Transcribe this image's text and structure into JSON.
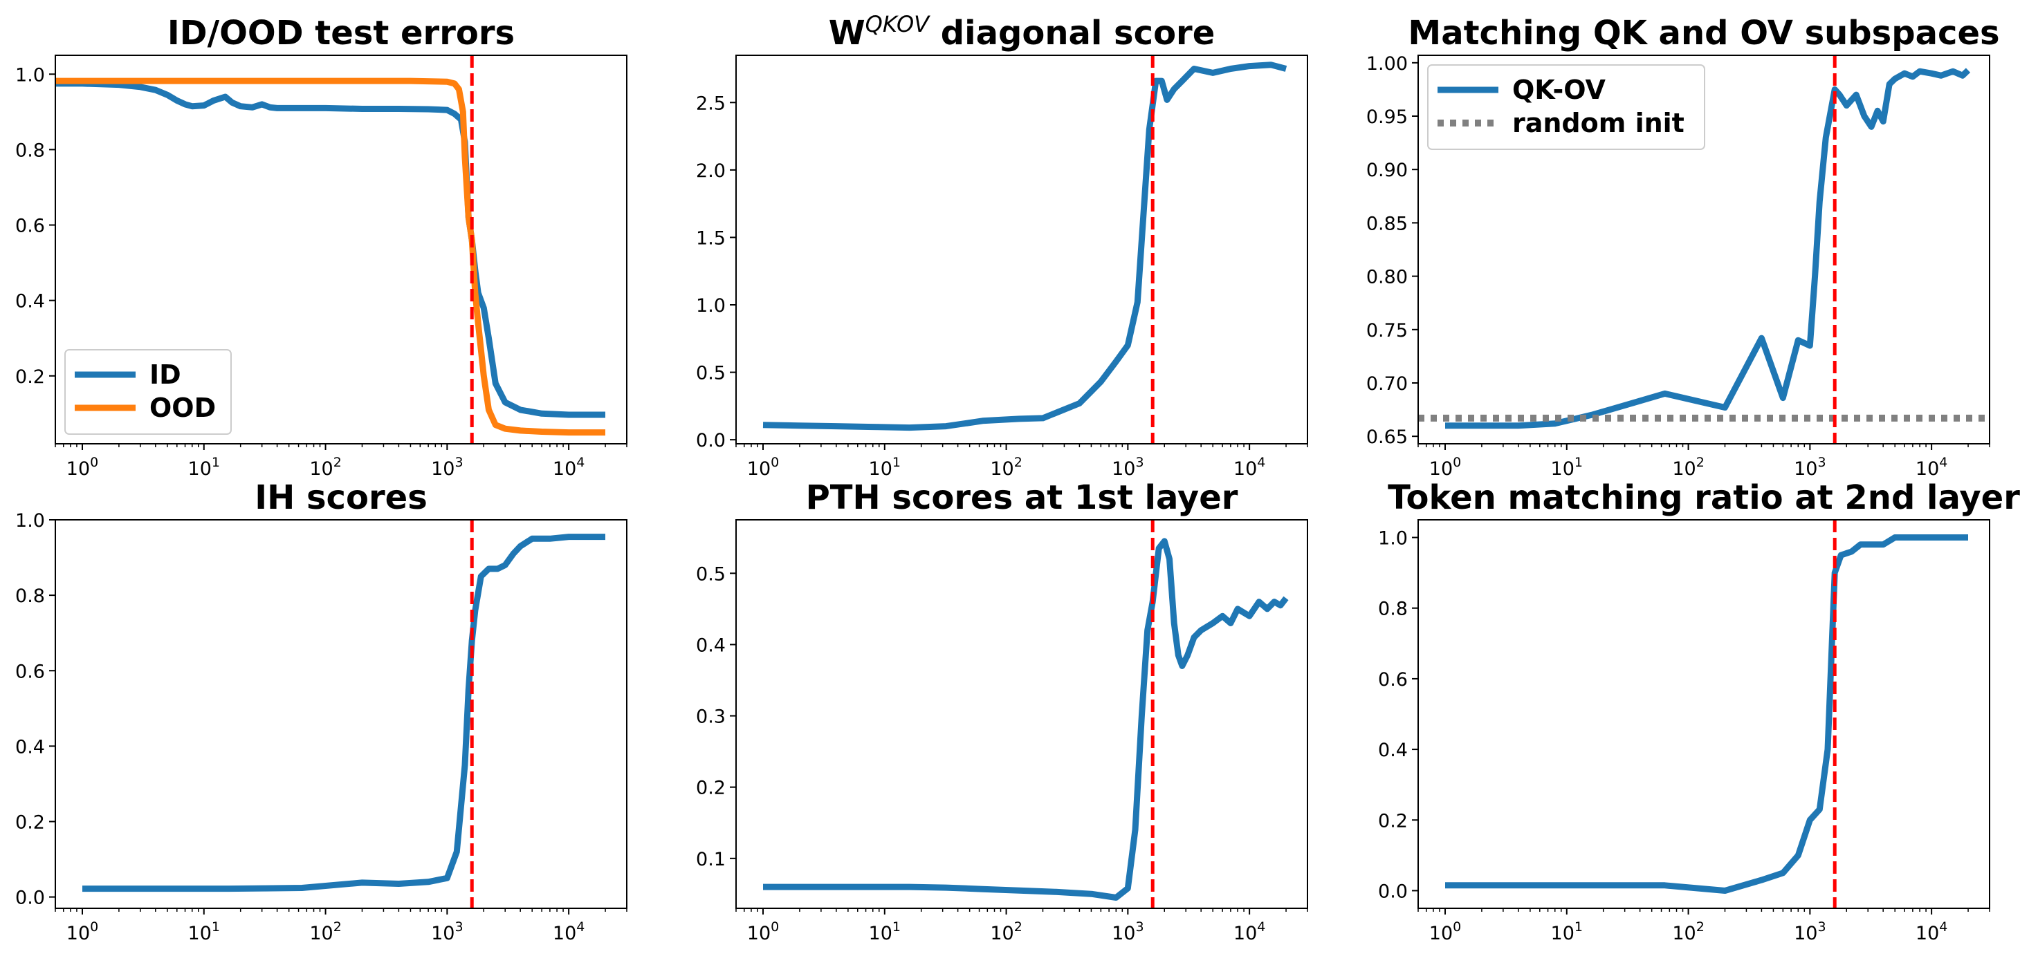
{
  "colors": {
    "blue": "#1f77b4",
    "orange": "#ff7f0e",
    "red": "#ff0000",
    "gray": "#808080"
  },
  "chart_data": [
    {
      "type": "line",
      "title": "ID/OOD test errors",
      "xscale": "log",
      "xlim": [
        0.6,
        30000
      ],
      "ylim": [
        0.02,
        1.05
      ],
      "yticks": [
        0.2,
        0.4,
        0.6,
        0.8,
        1.0
      ],
      "ytick_labels": [
        "0.2",
        "0.4",
        "0.6",
        "0.8",
        "1.0"
      ],
      "xticks": [
        1,
        10,
        100,
        1000,
        10000
      ],
      "xtick_labels": [
        "10^0",
        "10^1",
        "10^2",
        "10^3",
        "10^4"
      ],
      "vline": 1600,
      "legend": "lower-left",
      "series": [
        {
          "name": "ID",
          "color": "#1f77b4",
          "style": "solid",
          "x": [
            0.6,
            1,
            2,
            3,
            4,
            5,
            6,
            7,
            8,
            10,
            12,
            15,
            17,
            20,
            25,
            30,
            35,
            40,
            60,
            100,
            200,
            400,
            700,
            1000,
            1150,
            1300,
            1400,
            1500,
            1600,
            1700,
            1800,
            2000,
            2200,
            2500,
            3000,
            4000,
            6000,
            10000,
            20000
          ],
          "y": [
            0.975,
            0.975,
            0.972,
            0.966,
            0.958,
            0.945,
            0.93,
            0.92,
            0.915,
            0.917,
            0.93,
            0.94,
            0.925,
            0.915,
            0.912,
            0.92,
            0.912,
            0.91,
            0.91,
            0.91,
            0.908,
            0.908,
            0.907,
            0.905,
            0.895,
            0.88,
            0.82,
            0.62,
            0.56,
            0.48,
            0.42,
            0.38,
            0.3,
            0.18,
            0.13,
            0.11,
            0.1,
            0.097,
            0.097
          ]
        },
        {
          "name": "OOD",
          "color": "#ff7f0e",
          "style": "solid",
          "x": [
            0.6,
            1,
            10,
            100,
            500,
            1000,
            1150,
            1250,
            1350,
            1400,
            1500,
            1600,
            1700,
            1800,
            2000,
            2200,
            2500,
            3000,
            4000,
            6000,
            10000,
            20000
          ],
          "y": [
            0.982,
            0.982,
            0.982,
            0.982,
            0.982,
            0.98,
            0.975,
            0.96,
            0.9,
            0.78,
            0.62,
            0.56,
            0.42,
            0.34,
            0.2,
            0.11,
            0.07,
            0.06,
            0.055,
            0.052,
            0.05,
            0.05
          ]
        }
      ]
    },
    {
      "type": "line",
      "title": "W",
      "title_sup": "QKOV",
      "title_rest": " diagonal score",
      "xscale": "log",
      "xlim": [
        0.6,
        30000
      ],
      "ylim": [
        -0.03,
        2.85
      ],
      "yticks": [
        0.0,
        0.5,
        1.0,
        1.5,
        2.0,
        2.5
      ],
      "ytick_labels": [
        "0.0",
        "0.5",
        "1.0",
        "1.5",
        "2.0",
        "2.5"
      ],
      "xticks": [
        1,
        10,
        100,
        1000,
        10000
      ],
      "xtick_labels": [
        "10^0",
        "10^1",
        "10^2",
        "10^3",
        "10^4"
      ],
      "vline": 1600,
      "series": [
        {
          "name": "diagonal",
          "color": "#1f77b4",
          "style": "solid",
          "x": [
            1,
            2,
            4,
            8,
            16,
            32,
            64,
            128,
            200,
            400,
            600,
            800,
            1000,
            1200,
            1500,
            1700,
            1900,
            2100,
            2400,
            2800,
            3500,
            5000,
            7000,
            10000,
            15000,
            20000
          ],
          "y": [
            0.11,
            0.105,
            0.1,
            0.095,
            0.09,
            0.1,
            0.14,
            0.155,
            0.16,
            0.27,
            0.43,
            0.58,
            0.7,
            1.02,
            2.3,
            2.66,
            2.66,
            2.52,
            2.6,
            2.66,
            2.75,
            2.72,
            2.75,
            2.77,
            2.78,
            2.75
          ]
        }
      ]
    },
    {
      "type": "line",
      "title": "Matching QK and OV subspaces",
      "xscale": "log",
      "xlim": [
        0.6,
        30000
      ],
      "ylim": [
        0.643,
        1.007
      ],
      "yticks": [
        0.65,
        0.7,
        0.75,
        0.8,
        0.85,
        0.9,
        0.95,
        1.0
      ],
      "ytick_labels": [
        "0.65",
        "0.70",
        "0.75",
        "0.80",
        "0.85",
        "0.90",
        "0.95",
        "1.00"
      ],
      "xticks": [
        1,
        10,
        100,
        1000,
        10000
      ],
      "xtick_labels": [
        "10^0",
        "10^1",
        "10^2",
        "10^3",
        "10^4"
      ],
      "vline": 1600,
      "legend": "upper-left",
      "series": [
        {
          "name": "QK-OV",
          "color": "#1f77b4",
          "style": "solid",
          "x": [
            1,
            2,
            4,
            8,
            16,
            32,
            64,
            200,
            400,
            600,
            800,
            1000,
            1100,
            1200,
            1350,
            1600,
            1750,
            2000,
            2400,
            2800,
            3200,
            3600,
            4000,
            4500,
            5000,
            6000,
            7000,
            8000,
            10000,
            12000,
            15000,
            18000,
            20000
          ],
          "y": [
            0.66,
            0.66,
            0.66,
            0.662,
            0.67,
            0.68,
            0.69,
            0.677,
            0.742,
            0.686,
            0.74,
            0.735,
            0.8,
            0.87,
            0.93,
            0.975,
            0.97,
            0.96,
            0.97,
            0.95,
            0.94,
            0.955,
            0.945,
            0.98,
            0.985,
            0.99,
            0.987,
            0.992,
            0.99,
            0.988,
            0.992,
            0.988,
            0.993
          ]
        },
        {
          "name": "random init",
          "color": "#808080",
          "style": "dotted",
          "x": [
            0.6,
            30000
          ],
          "y": [
            0.667,
            0.667
          ]
        }
      ]
    },
    {
      "type": "line",
      "title": "IH scores",
      "xscale": "log",
      "xlim": [
        0.6,
        30000
      ],
      "ylim": [
        -0.03,
        1.0
      ],
      "yticks": [
        0.0,
        0.2,
        0.4,
        0.6,
        0.8,
        1.0
      ],
      "ytick_labels": [
        "0.0",
        "0.2",
        "0.4",
        "0.6",
        "0.8",
        "1.0"
      ],
      "xticks": [
        1,
        10,
        100,
        1000,
        10000
      ],
      "xtick_labels": [
        "10^0",
        "10^1",
        "10^2",
        "10^3",
        "10^4"
      ],
      "vline": 1600,
      "series": [
        {
          "name": "IH",
          "color": "#1f77b4",
          "style": "solid",
          "x": [
            1,
            2,
            4,
            8,
            16,
            32,
            64,
            200,
            400,
            700,
            1000,
            1200,
            1400,
            1500,
            1600,
            1700,
            1900,
            2200,
            2600,
            3000,
            3500,
            4000,
            5000,
            7000,
            10000,
            15000,
            20000
          ],
          "y": [
            0.022,
            0.022,
            0.022,
            0.022,
            0.022,
            0.023,
            0.024,
            0.038,
            0.035,
            0.04,
            0.05,
            0.12,
            0.35,
            0.55,
            0.68,
            0.76,
            0.85,
            0.87,
            0.87,
            0.88,
            0.91,
            0.93,
            0.95,
            0.95,
            0.955,
            0.955,
            0.955
          ]
        }
      ]
    },
    {
      "type": "line",
      "title": "PTH scores at 1st layer",
      "xscale": "log",
      "xlim": [
        0.6,
        30000
      ],
      "ylim": [
        0.03,
        0.575
      ],
      "yticks": [
        0.1,
        0.2,
        0.3,
        0.4,
        0.5
      ],
      "ytick_labels": [
        "0.1",
        "0.2",
        "0.3",
        "0.4",
        "0.5"
      ],
      "xticks": [
        1,
        10,
        100,
        1000,
        10000
      ],
      "xtick_labels": [
        "10^0",
        "10^1",
        "10^2",
        "10^3",
        "10^4"
      ],
      "vline": 1600,
      "series": [
        {
          "name": "PTH",
          "color": "#1f77b4",
          "style": "solid",
          "x": [
            1,
            2,
            4,
            8,
            16,
            32,
            64,
            128,
            256,
            512,
            800,
            1000,
            1150,
            1300,
            1450,
            1600,
            1800,
            2000,
            2200,
            2400,
            2600,
            2800,
            3100,
            3500,
            4000,
            5000,
            6000,
            7000,
            8000,
            10000,
            12000,
            14000,
            16000,
            18000,
            20000
          ],
          "y": [
            0.06,
            0.06,
            0.06,
            0.06,
            0.06,
            0.059,
            0.057,
            0.055,
            0.053,
            0.05,
            0.045,
            0.058,
            0.14,
            0.3,
            0.42,
            0.46,
            0.535,
            0.545,
            0.52,
            0.43,
            0.385,
            0.37,
            0.385,
            0.41,
            0.42,
            0.43,
            0.44,
            0.43,
            0.45,
            0.44,
            0.46,
            0.45,
            0.46,
            0.455,
            0.465
          ]
        }
      ]
    },
    {
      "type": "line",
      "title": "Token matching ratio at 2nd layer",
      "xscale": "log",
      "xlim": [
        0.6,
        30000
      ],
      "ylim": [
        -0.05,
        1.05
      ],
      "yticks": [
        0.0,
        0.2,
        0.4,
        0.6,
        0.8,
        1.0
      ],
      "ytick_labels": [
        "0.0",
        "0.2",
        "0.4",
        "0.6",
        "0.8",
        "1.0"
      ],
      "xticks": [
        1,
        10,
        100,
        1000,
        10000
      ],
      "xtick_labels": [
        "10^0",
        "10^1",
        "10^2",
        "10^3",
        "10^4"
      ],
      "vline": 1600,
      "series": [
        {
          "name": "token matching",
          "color": "#1f77b4",
          "style": "solid",
          "x": [
            1,
            2,
            4,
            8,
            16,
            32,
            64,
            200,
            400,
            600,
            800,
            1000,
            1200,
            1400,
            1600,
            1800,
            2200,
            2600,
            3200,
            4000,
            5000,
            7000,
            10000,
            15000,
            20000
          ],
          "y": [
            0.015,
            0.015,
            0.015,
            0.015,
            0.015,
            0.015,
            0.015,
            0.0,
            0.03,
            0.05,
            0.1,
            0.2,
            0.23,
            0.4,
            0.9,
            0.95,
            0.96,
            0.98,
            0.98,
            0.98,
            1.0,
            1.0,
            1.0,
            1.0,
            1.0
          ]
        }
      ]
    }
  ]
}
